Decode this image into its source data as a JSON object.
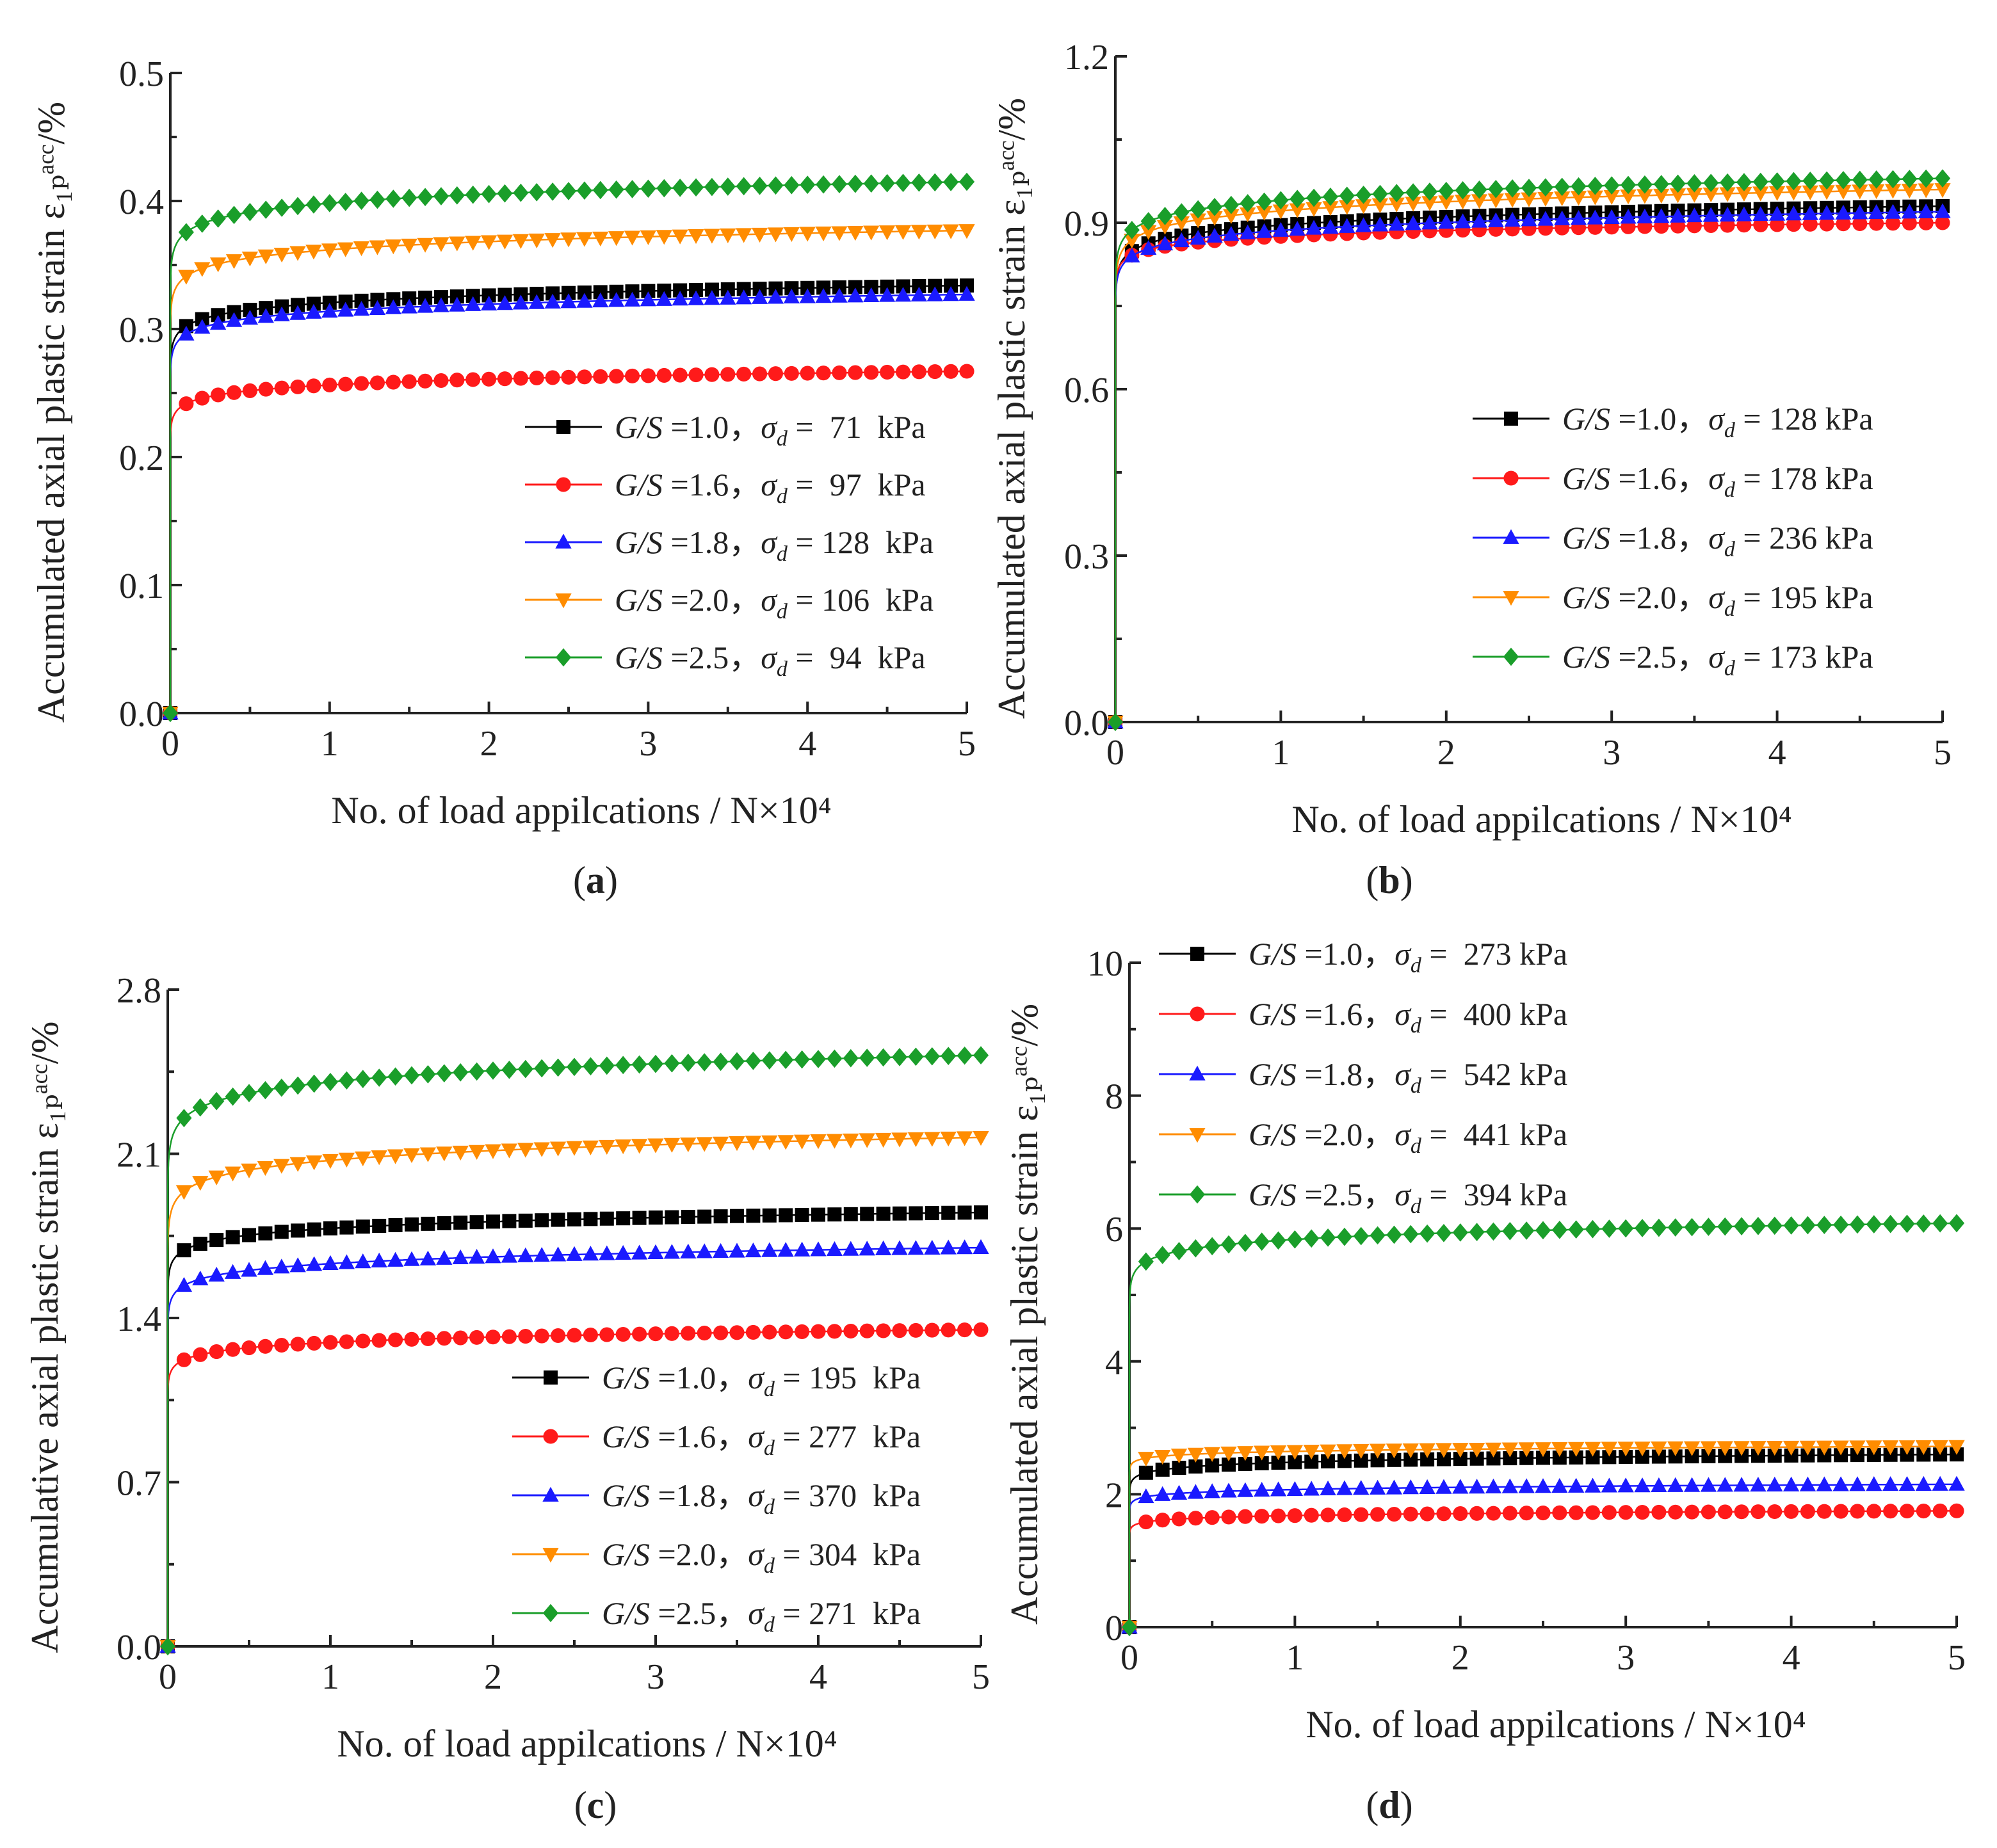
{
  "figure": {
    "panel_labels": [
      "a",
      "b",
      "c",
      "d"
    ],
    "series_colors": [
      "#000000",
      "#ff1a1a",
      "#1a1aff",
      "#ff8c00",
      "#1a9e2a"
    ],
    "series_markers": [
      "square",
      "circle",
      "triangle-up",
      "triangle-down",
      "diamond"
    ]
  },
  "chart_data": [
    {
      "type": "line",
      "panel": "a",
      "xlabel": "No. of load appilcations / N×10⁴",
      "ylabel": "Accumulated axial plastic strain ε₁ₚᵃᶜᶜ/%",
      "xlim": [
        0,
        5
      ],
      "ylim": [
        0,
        0.5
      ],
      "xticks": [
        "0",
        "1",
        "2",
        "3",
        "4",
        "5"
      ],
      "yticks": [
        "0.0",
        "0.1",
        "0.2",
        "0.3",
        "0.4",
        "0.5"
      ],
      "legend_position": "lower-right",
      "series": [
        {
          "name": "G/S =1.0，σd =  71  kPa",
          "a": 0.0255,
          "final": 0.334
        },
        {
          "name": "G/S =1.6，σd =  97  kPa",
          "a": 0.0255,
          "final": 0.267
        },
        {
          "name": "G/S =1.8，σd = 128  kPa",
          "a": 0.0255,
          "final": 0.327
        },
        {
          "name": "G/S =2.0，σd = 106  kPa",
          "a": 0.0255,
          "final": 0.377
        },
        {
          "name": "G/S =2.5，σd =  94  kPa",
          "a": 0.0255,
          "final": 0.415
        }
      ]
    },
    {
      "type": "line",
      "panel": "b",
      "xlabel": "No. of load appilcations / N×10⁴",
      "ylabel": "Accumulated axial plastic strain ε₁ₚᵃᶜᶜ/%",
      "xlim": [
        0,
        5
      ],
      "ylim": [
        0,
        1.2
      ],
      "xticks": [
        "0",
        "1",
        "2",
        "3",
        "4",
        "5"
      ],
      "yticks": [
        "0.0",
        "0.3",
        "0.6",
        "0.9",
        "1.2"
      ],
      "legend_position": "lower-right",
      "series": [
        {
          "name": "G/S =1.0，σd = 128 kPa",
          "a": 0.0233,
          "final": 0.93
        },
        {
          "name": "G/S =1.6，σd = 178 kPa",
          "a": 0.0172,
          "final": 0.9
        },
        {
          "name": "G/S =1.8，σd = 236 kPa",
          "a": 0.0233,
          "final": 0.92
        },
        {
          "name": "G/S =2.0，σd = 195 kPa",
          "a": 0.0255,
          "final": 0.96
        },
        {
          "name": "G/S =2.5，σd = 173 kPa",
          "a": 0.0255,
          "final": 0.98
        }
      ]
    },
    {
      "type": "line",
      "panel": "c",
      "xlabel": "No. of load appilcations / N×10⁴",
      "ylabel": "Accumulative axial plastic strain ε₁ₚᵃᶜᶜ/%",
      "xlim": [
        0,
        5
      ],
      "ylim": [
        0,
        2.8
      ],
      "xticks": [
        "0",
        "1",
        "2",
        "3",
        "4",
        "5"
      ],
      "yticks": [
        "0.0",
        "0.7",
        "1.4",
        "2.1",
        "2.8"
      ],
      "legend_position": "lower-right",
      "series": [
        {
          "name": "G/S =1.0，σd = 195  kPa",
          "a": 0.0233,
          "final": 1.85
        },
        {
          "name": "G/S =1.6，σd = 277  kPa",
          "a": 0.0255,
          "final": 1.35
        },
        {
          "name": "G/S =1.8，σd = 370  kPa",
          "a": 0.0255,
          "final": 1.7
        },
        {
          "name": "G/S =2.0，σd = 304  kPa",
          "a": 0.0287,
          "final": 2.17
        },
        {
          "name": "G/S =2.5，σd = 271  kPa",
          "a": 0.0287,
          "final": 2.52
        }
      ]
    },
    {
      "type": "line",
      "panel": "d",
      "xlabel": "No. of load appilcations / N×10⁴",
      "ylabel": "Accumulated axial plastic strain ε₁ₚᵃᶜᶜ/%",
      "xlim": [
        0,
        5
      ],
      "ylim": [
        0,
        10
      ],
      "xticks": [
        "0",
        "1",
        "2",
        "3",
        "4",
        "5"
      ],
      "yticks": [
        "0",
        "2",
        "4",
        "6",
        "8",
        "10"
      ],
      "legend_position": "top-left",
      "series": [
        {
          "name": "G/S =1.0，σd =  273 kPa",
          "a": 0.0287,
          "final": 2.6
        },
        {
          "name": "G/S =1.6，σd =  400 kPa",
          "a": 0.0255,
          "final": 1.75
        },
        {
          "name": "G/S =1.8，σd =  542 kPa",
          "a": 0.0233,
          "final": 2.15
        },
        {
          "name": "G/S =2.0，σd =  441 kPa",
          "a": 0.0172,
          "final": 2.72
        },
        {
          "name": "G/S =2.5，σd =  394 kPa",
          "a": 0.0255,
          "final": 6.08
        }
      ]
    }
  ]
}
